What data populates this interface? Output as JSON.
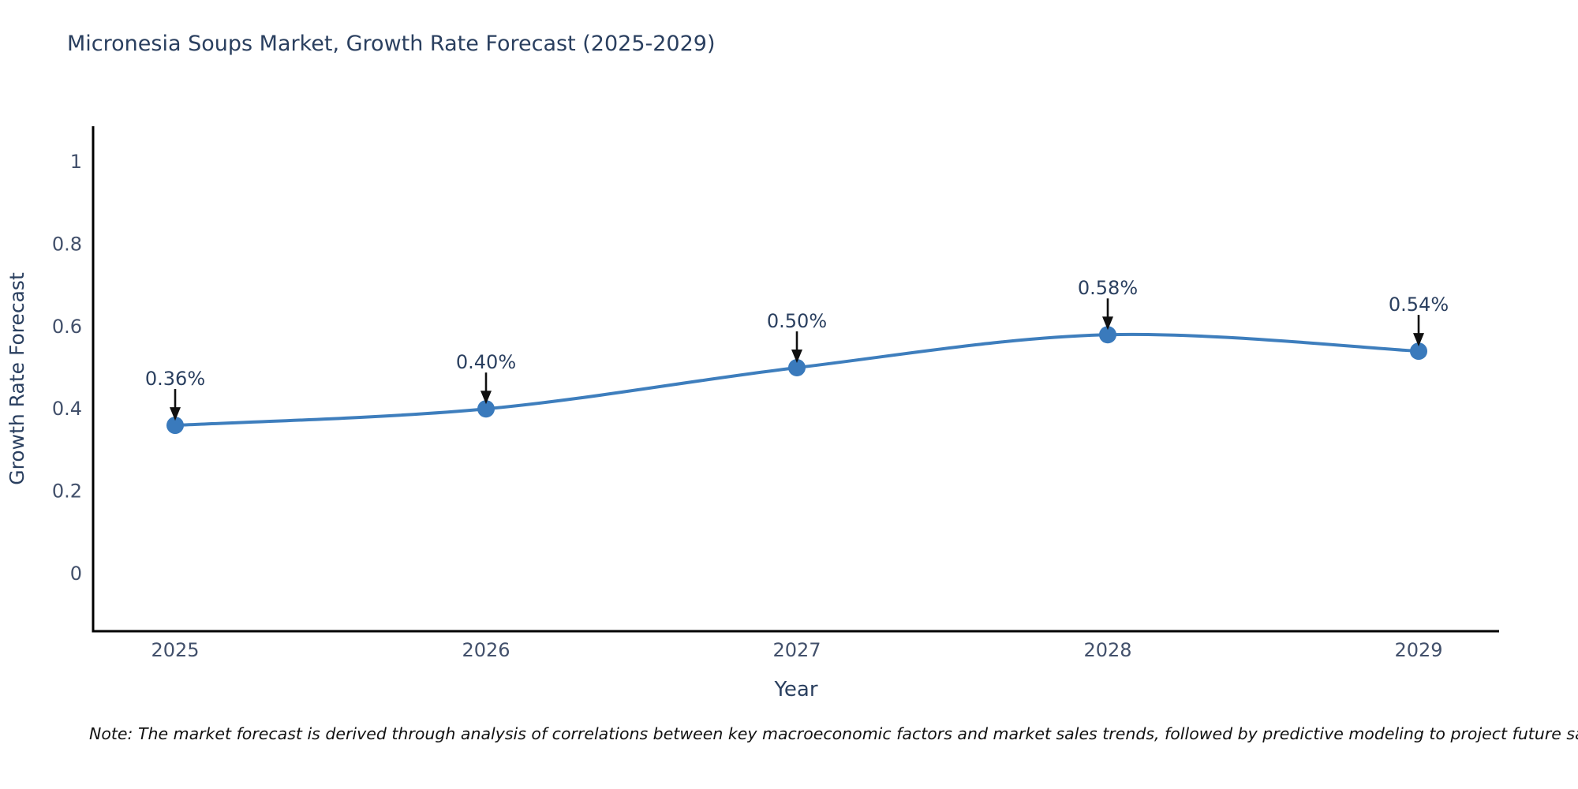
{
  "title": "Micronesia Soups Market, Growth Rate Forecast (2025-2029)",
  "note": "Note: The market forecast is derived through analysis of correlations between key macroeconomic factors and market sales trends, followed by predictive modeling to project future sales",
  "chart_data": {
    "type": "line",
    "title": "Micronesia Soups Market, Growth Rate Forecast (2025-2029)",
    "x": [
      2025,
      2026,
      2027,
      2028,
      2029
    ],
    "values": [
      0.36,
      0.4,
      0.5,
      0.58,
      0.54
    ],
    "point_labels": [
      "0.36%",
      "0.40%",
      "0.50%",
      "0.58%",
      "0.54%"
    ],
    "xlabel": "Year",
    "ylabel": "Growth Rate Forecast",
    "yticks": [
      0,
      0.2,
      0.4,
      0.6,
      0.8,
      1
    ],
    "ytick_labels": [
      "0",
      "0.2",
      "0.4",
      "0.6",
      "0.8",
      "1"
    ],
    "xtick_labels": [
      "2025",
      "2026",
      "2027",
      "2028",
      "2029"
    ],
    "ylim": [
      -0.14,
      1.09
    ],
    "curve": "spline",
    "grid": false,
    "legend_position": "none",
    "colors": {
      "line": "#3e7ebd",
      "marker": "#3a7abc",
      "axis": "#000000",
      "tick_label": "#42506b",
      "title": "#2a3f5f",
      "annotation_text": "#2a3f5f",
      "annotation_arrow": "#101010"
    }
  }
}
